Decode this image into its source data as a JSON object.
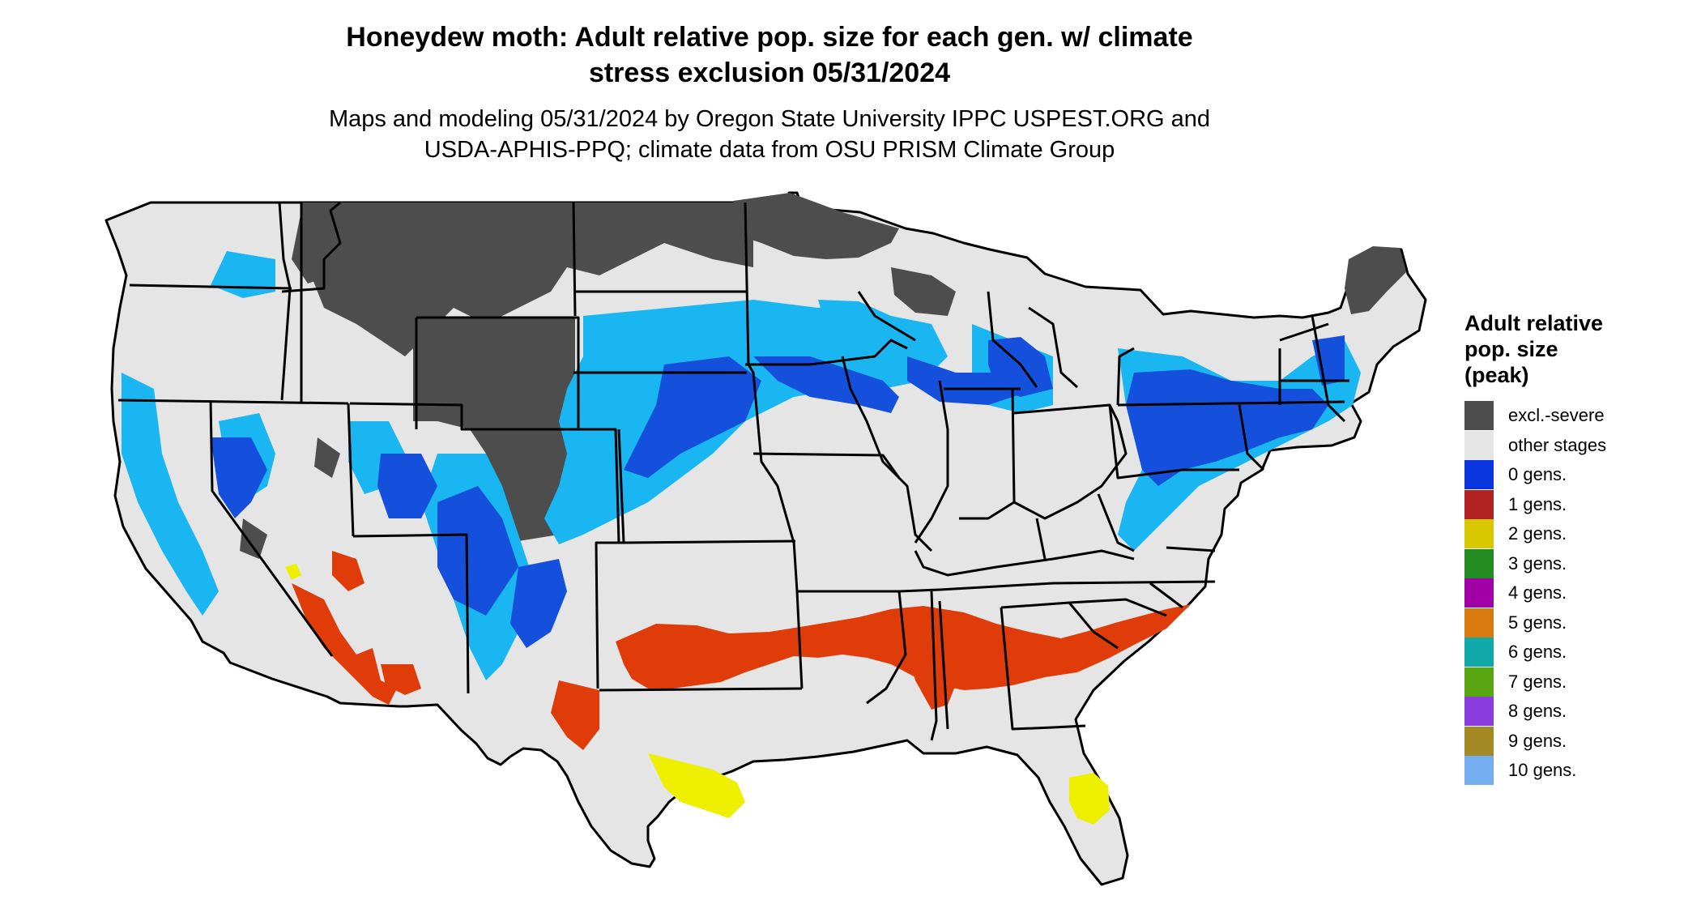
{
  "title_line1": "Honeydew moth: Adult relative pop. size for each gen. w/ climate",
  "title_line2": "stress exclusion 05/31/2024",
  "subtitle_line1": "Maps and modeling 05/31/2024 by Oregon State University IPPC USPEST.ORG and",
  "subtitle_line2": "USDA-APHIS-PPQ; climate data from OSU PRISM Climate Group",
  "legend": {
    "title_line1": "Adult relative",
    "title_line2": "pop. size",
    "title_line3": "(peak)",
    "items": [
      {
        "label": "excl.-severe",
        "color": "#4d4d4d"
      },
      {
        "label": "other stages",
        "color": "#e5e5e5"
      },
      {
        "label": "0 gens.",
        "color": "#0a36e0"
      },
      {
        "label": "1 gens.",
        "color": "#b22222"
      },
      {
        "label": "2 gens.",
        "color": "#d8c800"
      },
      {
        "label": "3 gens.",
        "color": "#228b22"
      },
      {
        "label": "4 gens.",
        "color": "#a100a6"
      },
      {
        "label": "5 gens.",
        "color": "#d97a0f"
      },
      {
        "label": "6 gens.",
        "color": "#10a8a8"
      },
      {
        "label": "7 gens.",
        "color": "#5aa512"
      },
      {
        "label": "8 gens.",
        "color": "#8a3cdf"
      },
      {
        "label": "9 gens.",
        "color": "#a48a25"
      },
      {
        "label": "10 gens.",
        "color": "#75aef0"
      }
    ]
  },
  "map_colors": {
    "background_land": "#e5e5e5",
    "excluded": "#4d4d4d",
    "zero_gen_light": "#19b6f2",
    "zero_gen_dark": "#1550dd",
    "one_gen": "#e03c0a",
    "two_gen": "#eef000",
    "boundary": "#000000"
  }
}
